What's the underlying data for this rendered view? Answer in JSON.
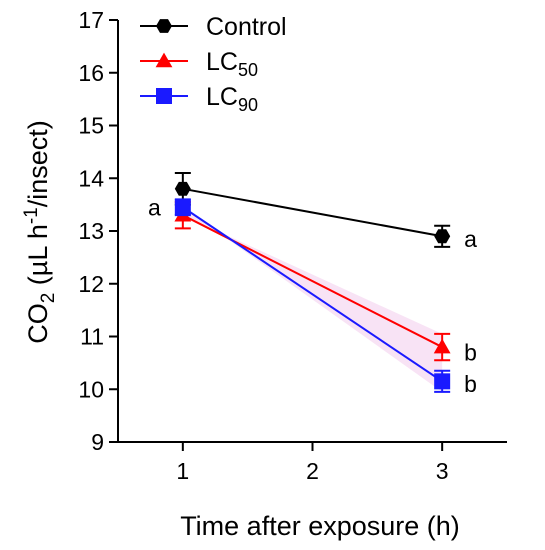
{
  "chart_data": {
    "type": "line",
    "x": [
      1,
      3
    ],
    "xticks": [
      "1",
      "2",
      "3"
    ],
    "xlim": [
      0.5,
      3.5
    ],
    "ylim": [
      9,
      17
    ],
    "yticks": [
      "9",
      "10",
      "11",
      "12",
      "13",
      "14",
      "15",
      "16",
      "17"
    ],
    "xlabel": "Time after exposure (h)",
    "ylabel": {
      "main": "CO",
      "sub": "2",
      "unit_open": " (µL h",
      "unit_sup": "-1",
      "unit_close": "/insect)"
    },
    "legend_position": "top-left",
    "grid": false,
    "series": [
      {
        "name": "Control",
        "name_main": "Control",
        "name_sub": "",
        "marker": "hexagon",
        "color": "#000000",
        "line_color": "#000000",
        "values": [
          13.8,
          12.9
        ],
        "errors": [
          0.3,
          0.2
        ]
      },
      {
        "name": "LC50",
        "name_main": "LC",
        "name_sub": "50",
        "marker": "triangle",
        "color": "#ff0000",
        "line_color": "#ff0000",
        "values": [
          13.3,
          10.8
        ],
        "errors": [
          0.25,
          0.25
        ]
      },
      {
        "name": "LC90",
        "name_main": "LC",
        "name_sub": "90",
        "marker": "square",
        "color": "#1a1aff",
        "line_color": "#1a1aff",
        "values": [
          13.45,
          10.15
        ],
        "errors": [
          0.15,
          0.2
        ]
      }
    ],
    "annotations": [
      {
        "text": "a",
        "x": 1,
        "y": 13.45,
        "side": "left"
      },
      {
        "text": "a",
        "x": 3,
        "y": 12.85,
        "side": "right"
      },
      {
        "text": "b",
        "x": 3,
        "y": 10.7,
        "side": "right"
      },
      {
        "text": "b",
        "x": 3,
        "y": 10.1,
        "side": "right"
      }
    ]
  }
}
